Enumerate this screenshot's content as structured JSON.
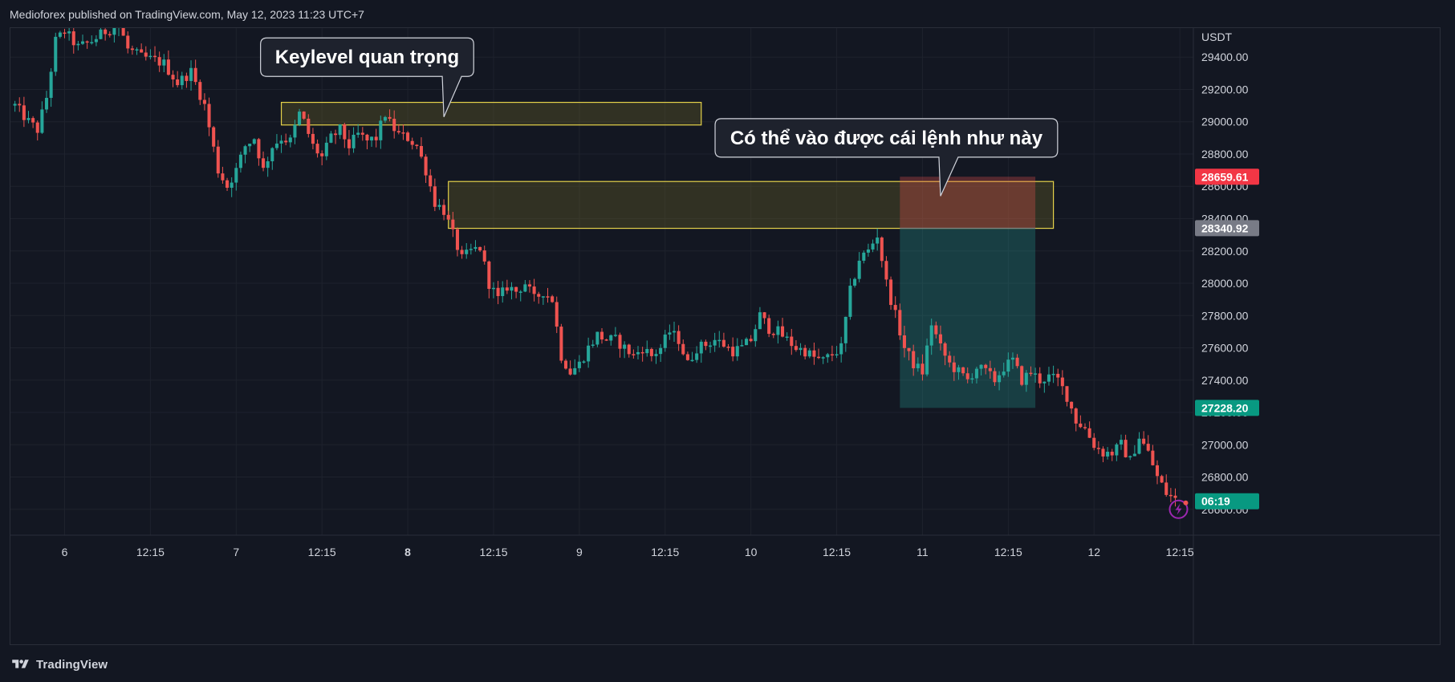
{
  "header": {
    "published_by": "Medioforex published on TradingView.com, May 12, 2023 11:23 UTC+7"
  },
  "footer": {
    "brand": "TradingView",
    "logo_icon": "tradingview-logo-icon"
  },
  "colors": {
    "background": "#131722",
    "grid": "#1e222d",
    "up": "#26a69a",
    "down": "#ef5350",
    "zone_border": "#e5d24a",
    "zone_fill": "rgba(120,110,40,0.30)",
    "stop_fill": "rgba(239,83,80,0.30)",
    "target_fill": "rgba(38,166,154,0.28)",
    "callout_bg": "#1e222d",
    "callout_border": "#d1d4dc"
  },
  "chart_data": {
    "type": "candlestick",
    "title": "",
    "currency": "USDT",
    "ylim": [
      26440,
      29580
    ],
    "y_ticks": [
      "26600.00",
      "26800.00",
      "27000.00",
      "27200.00",
      "27400.00",
      "27600.00",
      "27800.00",
      "28000.00",
      "28200.00",
      "28400.00",
      "28600.00",
      "28800.00",
      "29000.00",
      "29200.00",
      "29400.00"
    ],
    "x_ticks": [
      {
        "label": "6",
        "i": 11,
        "bold": false
      },
      {
        "label": "12:15",
        "i": 30,
        "bold": false
      },
      {
        "label": "7",
        "i": 49,
        "bold": false
      },
      {
        "label": "12:15",
        "i": 68,
        "bold": false
      },
      {
        "label": "8",
        "i": 87,
        "bold": true
      },
      {
        "label": "12:15",
        "i": 106,
        "bold": false
      },
      {
        "label": "9",
        "i": 125,
        "bold": false
      },
      {
        "label": "12:15",
        "i": 144,
        "bold": false
      },
      {
        "label": "10",
        "i": 163,
        "bold": false
      },
      {
        "label": "12:15",
        "i": 182,
        "bold": false
      },
      {
        "label": "11",
        "i": 201,
        "bold": false
      },
      {
        "label": "12:15",
        "i": 220,
        "bold": false
      },
      {
        "label": "12",
        "i": 239,
        "bold": false
      },
      {
        "label": "12:15",
        "i": 258,
        "bold": false
      }
    ],
    "price_labels": [
      {
        "value": 28659.61,
        "label": "28659.61",
        "bg": "#f23645",
        "fg": "#ffffff"
      },
      {
        "value": 28340.92,
        "label": "28340.92",
        "bg": "#787b86",
        "fg": "#ffffff"
      },
      {
        "value": 27228.2,
        "label": "27228.20",
        "bg": "#089981",
        "fg": "#ffffff"
      },
      {
        "value": 26650,
        "label": "06:19",
        "bg": "#089981",
        "fg": "#ffffff"
      }
    ],
    "path": [
      [
        0,
        29100
      ],
      [
        3,
        29000
      ],
      [
        5,
        28950
      ],
      [
        7,
        29150
      ],
      [
        9,
        29500
      ],
      [
        11,
        29560
      ],
      [
        14,
        29460
      ],
      [
        17,
        29500
      ],
      [
        20,
        29560
      ],
      [
        23,
        29600
      ],
      [
        25,
        29450
      ],
      [
        28,
        29400
      ],
      [
        31,
        29380
      ],
      [
        33,
        29360
      ],
      [
        36,
        29240
      ],
      [
        39,
        29310
      ],
      [
        42,
        29100
      ],
      [
        45,
        28700
      ],
      [
        47,
        28600
      ],
      [
        49,
        28700
      ],
      [
        51,
        28850
      ],
      [
        53,
        28900
      ],
      [
        55,
        28700
      ],
      [
        57,
        28850
      ],
      [
        59,
        28900
      ],
      [
        61,
        28880
      ],
      [
        63,
        29050
      ],
      [
        64,
        29000
      ],
      [
        66,
        28850
      ],
      [
        68,
        28780
      ],
      [
        70,
        28900
      ],
      [
        72,
        28950
      ],
      [
        74,
        28850
      ],
      [
        76,
        28920
      ],
      [
        78,
        28880
      ],
      [
        80,
        28900
      ],
      [
        82,
        29050
      ],
      [
        83,
        28990
      ],
      [
        85,
        28920
      ],
      [
        87,
        28900
      ],
      [
        89,
        28850
      ],
      [
        91,
        28700
      ],
      [
        93,
        28500
      ],
      [
        95,
        28450
      ],
      [
        97,
        28300
      ],
      [
        99,
        28150
      ],
      [
        101,
        28200
      ],
      [
        103,
        28220
      ],
      [
        105,
        28000
      ],
      [
        107,
        27900
      ],
      [
        109,
        27980
      ],
      [
        111,
        27950
      ],
      [
        113,
        28000
      ],
      [
        115,
        27900
      ],
      [
        117,
        27950
      ],
      [
        119,
        27900
      ],
      [
        121,
        27550
      ],
      [
        123,
        27450
      ],
      [
        125,
        27500
      ],
      [
        127,
        27600
      ],
      [
        129,
        27680
      ],
      [
        131,
        27650
      ],
      [
        133,
        27650
      ],
      [
        135,
        27600
      ],
      [
        137,
        27550
      ],
      [
        139,
        27600
      ],
      [
        141,
        27550
      ],
      [
        143,
        27600
      ],
      [
        145,
        27700
      ],
      [
        147,
        27650
      ],
      [
        149,
        27500
      ],
      [
        151,
        27600
      ],
      [
        153,
        27620
      ],
      [
        155,
        27650
      ],
      [
        157,
        27620
      ],
      [
        159,
        27580
      ],
      [
        161,
        27600
      ],
      [
        163,
        27650
      ],
      [
        165,
        27800
      ],
      [
        167,
        27720
      ],
      [
        169,
        27700
      ],
      [
        171,
        27650
      ],
      [
        173,
        27600
      ],
      [
        175,
        27580
      ],
      [
        177,
        27540
      ],
      [
        179,
        27520
      ],
      [
        181,
        27560
      ],
      [
        183,
        27600
      ],
      [
        185,
        27950
      ],
      [
        187,
        28150
      ],
      [
        189,
        28200
      ],
      [
        191,
        28300
      ],
      [
        193,
        28000
      ],
      [
        195,
        27800
      ],
      [
        197,
        27600
      ],
      [
        199,
        27500
      ],
      [
        201,
        27450
      ],
      [
        203,
        27750
      ],
      [
        205,
        27600
      ],
      [
        207,
        27500
      ],
      [
        209,
        27450
      ],
      [
        211,
        27400
      ],
      [
        213,
        27480
      ],
      [
        215,
        27450
      ],
      [
        217,
        27400
      ],
      [
        219,
        27480
      ],
      [
        221,
        27520
      ],
      [
        223,
        27400
      ],
      [
        225,
        27450
      ],
      [
        227,
        27400
      ],
      [
        229,
        27420
      ],
      [
        231,
        27400
      ],
      [
        233,
        27300
      ],
      [
        235,
        27150
      ],
      [
        237,
        27100
      ],
      [
        239,
        27000
      ],
      [
        241,
        26950
      ],
      [
        243,
        26950
      ],
      [
        245,
        27000
      ],
      [
        247,
        26900
      ],
      [
        249,
        27050
      ],
      [
        251,
        26950
      ],
      [
        253,
        26800
      ],
      [
        255,
        26700
      ],
      [
        257,
        26660
      ]
    ],
    "zones": [
      {
        "name": "keylevel-zone",
        "x0": 59,
        "x1": 152,
        "y0": 28980,
        "y1": 29120
      },
      {
        "name": "entry-zone",
        "x0": 96,
        "x1": 230,
        "y0": 28340,
        "y1": 28630
      }
    ],
    "position": {
      "x0": 196,
      "x1": 226,
      "stop": 28659.61,
      "entry": 28340.92,
      "target": 27228.2
    },
    "annotations": [
      {
        "name": "callout-keylevel",
        "text": "Keylevel quan trọng",
        "x": 78,
        "y": 29400,
        "tip_x": 95,
        "tip_y": 29030
      },
      {
        "name": "callout-entry",
        "text": "Có thể vào được cái lệnh như này",
        "x": 193,
        "y": 28900,
        "tip_x": 205,
        "tip_y": 28540
      }
    ]
  }
}
